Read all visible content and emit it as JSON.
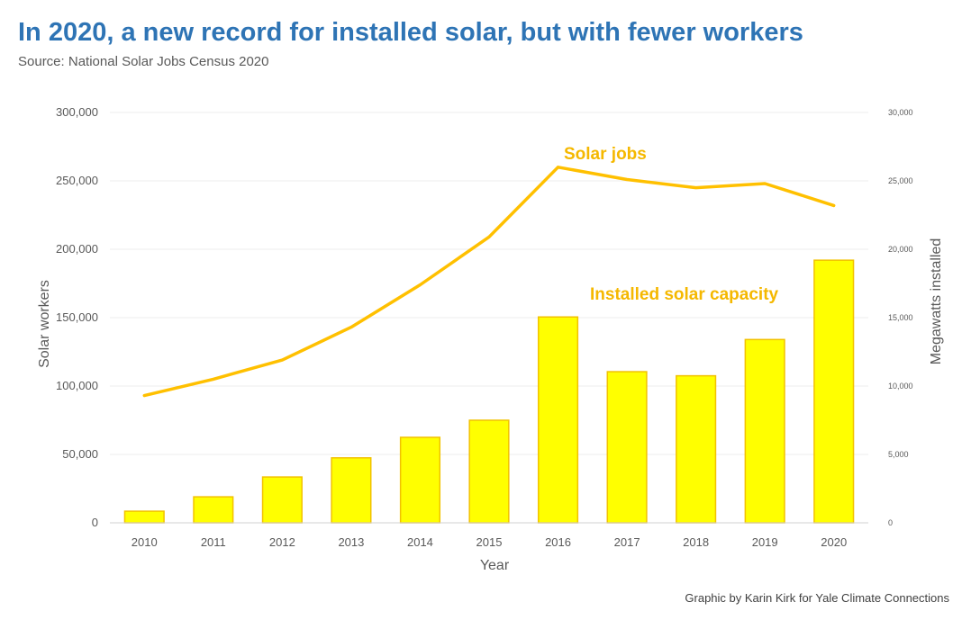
{
  "title": "In 2020, a new record for installed solar, but with fewer workers",
  "subtitle": "Source: National Solar Jobs Census 2020",
  "credit": "Graphic by Karin Kirk for Yale Climate Connections",
  "colors": {
    "title": "#2e74b5",
    "bar_fill": "#ffff00",
    "bar_stroke": "#f2c200",
    "line": "#ffc000",
    "annotation": "#f5b800",
    "grid": "#ececec"
  },
  "chart_data": {
    "type": "bar+line",
    "xlabel": "Year",
    "ylabel_left": "Solar workers",
    "ylabel_right": "Megawatts installed",
    "categories": [
      "2010",
      "2011",
      "2012",
      "2013",
      "2014",
      "2015",
      "2016",
      "2017",
      "2018",
      "2019",
      "2020"
    ],
    "left_axis": {
      "range": [
        0,
        300000
      ],
      "ticks": [
        0,
        50000,
        100000,
        150000,
        200000,
        250000,
        300000
      ],
      "tick_labels": [
        "0",
        "50,000",
        "100,000",
        "150,000",
        "200,000",
        "250,000",
        "300,000"
      ]
    },
    "right_axis": {
      "range": [
        0,
        30000
      ],
      "ticks": [
        0,
        5000,
        10000,
        15000,
        20000,
        25000,
        30000
      ],
      "tick_labels": [
        "0",
        "5,000",
        "10,000",
        "15,000",
        "20,000",
        "25,000",
        "30,000"
      ]
    },
    "grid": true,
    "series": [
      {
        "name": "Installed solar capacity",
        "type": "bar",
        "axis": "right",
        "values": [
          850,
          1900,
          3350,
          4750,
          6250,
          7500,
          15050,
          11050,
          10750,
          13400,
          19200
        ]
      },
      {
        "name": "Solar jobs",
        "type": "line",
        "axis": "left",
        "values": [
          93000,
          105000,
          119000,
          143000,
          174000,
          209000,
          260000,
          251000,
          245000,
          248000,
          232000
        ]
      }
    ],
    "annotations": [
      {
        "text": "Solar jobs",
        "series": "Solar jobs"
      },
      {
        "text": "Installed solar capacity",
        "series": "Installed solar capacity"
      }
    ]
  }
}
